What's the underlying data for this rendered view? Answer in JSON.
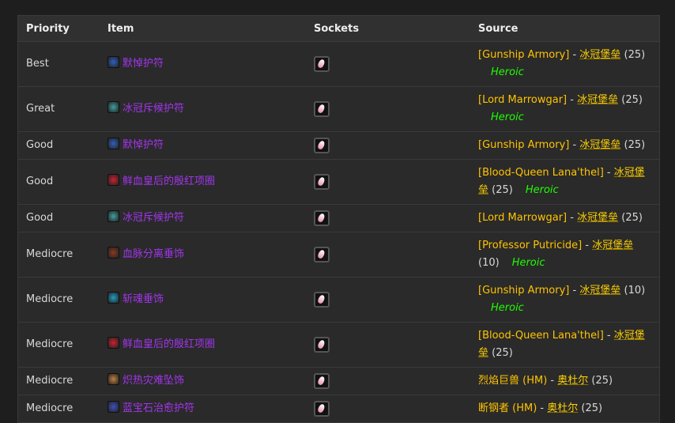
{
  "headers": [
    "Priority",
    "Item",
    "Sockets",
    "Source"
  ],
  "rows": [
    {
      "priority": "Best",
      "item": "默悼护符",
      "icon_color": "#3060c0",
      "boss": "[Gunship Armory]",
      "sep": " - ",
      "zone": "冰冠堡垒",
      "size": " (25)",
      "heroic": "Heroic"
    },
    {
      "priority": "Great",
      "item": "冰冠斥候护符",
      "icon_color": "#40a0a0",
      "boss": "[Lord Marrowgar]",
      "sep": " - ",
      "zone": "冰冠堡垒",
      "size": " (25)",
      "heroic": "Heroic"
    },
    {
      "priority": "Good",
      "item": "默悼护符",
      "icon_color": "#3060c0",
      "boss": "[Gunship Armory]",
      "sep": " - ",
      "zone": "冰冠堡垒",
      "size": " (25)",
      "heroic": ""
    },
    {
      "priority": "Good",
      "item": "鲜血皇后的殷红项圈",
      "icon_color": "#d02030",
      "boss": "[Blood-Queen Lana'thel]",
      "sep": " - ",
      "zone": "冰冠堡垒",
      "size": " (25)",
      "heroic": "Heroic"
    },
    {
      "priority": "Good",
      "item": "冰冠斥候护符",
      "icon_color": "#40a0a0",
      "boss": "[Lord Marrowgar]",
      "sep": " - ",
      "zone": "冰冠堡垒",
      "size": " (25)",
      "heroic": ""
    },
    {
      "priority": "Mediocre",
      "item": "血脉分离垂饰",
      "icon_color": "#8a3a20",
      "boss": "[Professor Putricide]",
      "sep": " - ",
      "zone": "冰冠堡垒",
      "size": " (10)",
      "heroic": "Heroic"
    },
    {
      "priority": "Mediocre",
      "item": "斩魂垂饰",
      "icon_color": "#20a0c0",
      "boss": "[Gunship Armory]",
      "sep": " - ",
      "zone": "冰冠堡垒",
      "size": " (10)",
      "heroic": "Heroic"
    },
    {
      "priority": "Mediocre",
      "item": "鲜血皇后的殷红项圈",
      "icon_color": "#d02030",
      "boss": "[Blood-Queen Lana'thel]",
      "sep": " - ",
      "zone": "冰冠堡垒",
      "size": " (25)",
      "heroic": ""
    },
    {
      "priority": "Mediocre",
      "item": "炽热灾难坠饰",
      "icon_color": "#c08040",
      "boss": "烈焰巨兽 (HM)",
      "sep": " - ",
      "zone": "奥杜尔",
      "size": " (25)",
      "heroic": ""
    },
    {
      "priority": "Mediocre",
      "item": "蓝宝石治愈护符",
      "icon_color": "#4050c0",
      "boss": "断钢者 (HM)",
      "sep": " - ",
      "zone": "奥杜尔",
      "size": " (25)",
      "heroic": ""
    }
  ]
}
